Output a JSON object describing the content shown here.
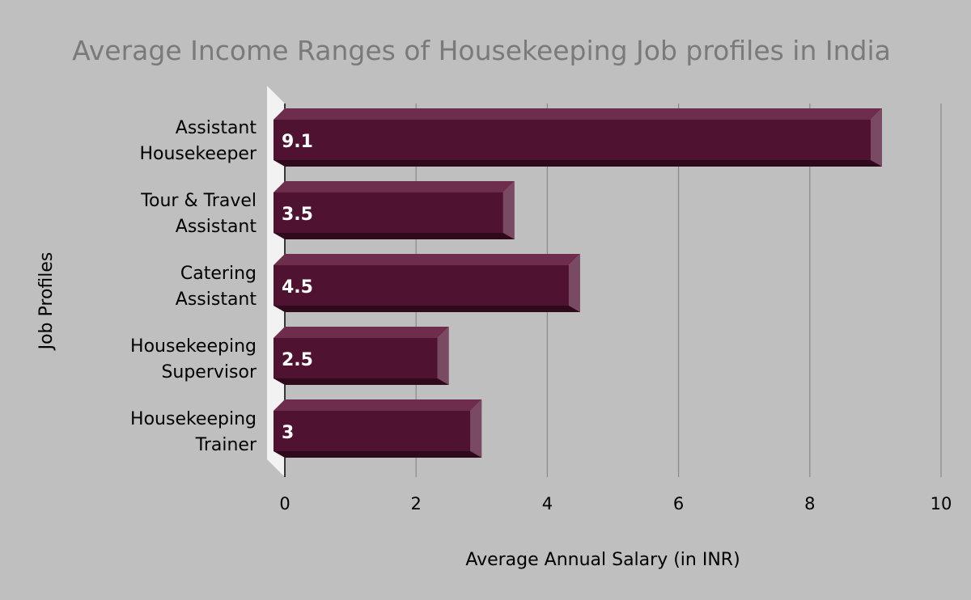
{
  "chart_data": {
    "type": "bar",
    "orientation": "horizontal",
    "title": "Average Income Ranges of Housekeeping Job profiles in India",
    "xlabel": "Average Annual Salary (in INR)",
    "ylabel": "Job Profiles",
    "categories": [
      [
        "Assistant",
        "Housekeeper"
      ],
      [
        "Tour & Travel",
        "Assistant"
      ],
      [
        "Catering",
        "Assistant"
      ],
      [
        "Housekeeping",
        "Supervisor"
      ],
      [
        "Housekeeping",
        "Trainer"
      ]
    ],
    "values": [
      9.1,
      3.5,
      4.5,
      2.5,
      3
    ],
    "value_labels": [
      "9.1",
      "3.5",
      "4.5",
      "2.5",
      "3"
    ],
    "xlim": [
      0,
      10
    ],
    "xticks": [
      0,
      2,
      4,
      6,
      8,
      10
    ],
    "tick_labels": [
      "0",
      "2",
      "4",
      "6",
      "8",
      "10"
    ],
    "grid": true,
    "legend": "none",
    "style": "3d",
    "colors": {
      "background": "#bfbfbf",
      "bar_front": "#4f1331",
      "bar_top": "#6e2d4d",
      "bar_side": "#7a4a63",
      "bar_bottom": "#2e0a1c",
      "wall": "#f2f2f2",
      "gridline": "#8c8c8c",
      "title": "#7a7a7a"
    }
  }
}
